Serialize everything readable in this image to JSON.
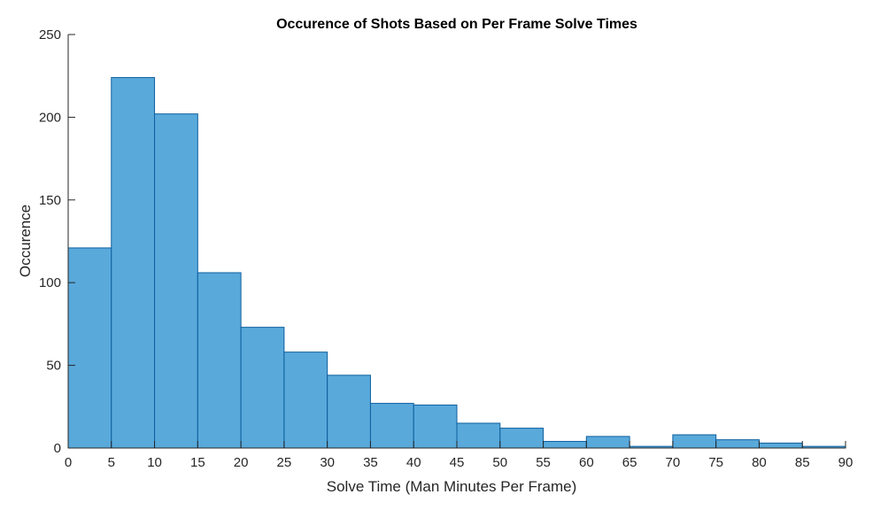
{
  "chart_data": {
    "type": "bar",
    "title": "Occurence of Shots Based on Per Frame Solve Times",
    "xlabel": "Solve Time (Man Minutes Per Frame)",
    "ylabel": "Occurence",
    "bin_edges": [
      0,
      5,
      10,
      15,
      20,
      25,
      30,
      35,
      40,
      45,
      50,
      55,
      60,
      65,
      70,
      75,
      80,
      85,
      90
    ],
    "values": [
      121,
      224,
      202,
      106,
      73,
      58,
      44,
      27,
      26,
      15,
      12,
      4,
      7,
      1,
      8,
      5,
      3,
      1
    ],
    "xlim": [
      0,
      90
    ],
    "ylim": [
      0,
      250
    ],
    "xticks": [
      0,
      5,
      10,
      15,
      20,
      25,
      30,
      35,
      40,
      45,
      50,
      55,
      60,
      65,
      70,
      75,
      80,
      85,
      90
    ],
    "yticks": [
      0,
      50,
      100,
      150,
      200,
      250
    ],
    "bar_color": "#59a9db",
    "edge_color": "#0d5f9e",
    "grid": false,
    "legend": false
  }
}
